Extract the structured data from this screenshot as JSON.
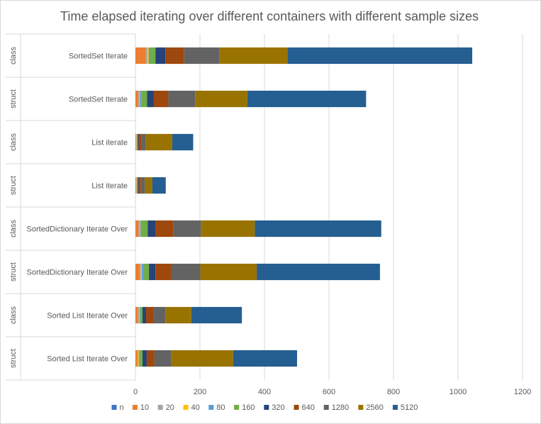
{
  "chart_data": {
    "type": "bar",
    "orientation": "horizontal",
    "stacked": true,
    "title": "Time elapsed iterating over different containers with different sample sizes",
    "xlabel": "",
    "ylabel": "",
    "xlim": [
      0,
      1200
    ],
    "xticks": [
      0,
      200,
      400,
      600,
      800,
      1000,
      1200
    ],
    "grid": true,
    "legend_position": "bottom",
    "categories": [
      {
        "group": "class",
        "label": "SortedSet Iterate"
      },
      {
        "group": "struct",
        "label": "SortedSet Iterate"
      },
      {
        "group": "class",
        "label": "List iterate"
      },
      {
        "group": "struct",
        "label": "List iterate"
      },
      {
        "group": "class",
        "label": "SortedDictionary Iterate Over"
      },
      {
        "group": "struct",
        "label": "SortedDictionary Iterate Over"
      },
      {
        "group": "class",
        "label": "Sorted List Iterate Over"
      },
      {
        "group": "struct",
        "label": "Sorted List Iterate Over"
      }
    ],
    "series": [
      {
        "name": "n",
        "color": "#4472c4",
        "values": [
          0,
          0,
          0,
          0,
          0,
          0,
          0,
          0
        ]
      },
      {
        "name": "10",
        "color": "#ed7d31",
        "values": [
          32,
          9,
          2,
          2,
          10,
          13,
          8,
          6
        ]
      },
      {
        "name": "20",
        "color": "#a5a5a5",
        "values": [
          4,
          3,
          1,
          1,
          3,
          4,
          3,
          3
        ]
      },
      {
        "name": "40",
        "color": "#ffc000",
        "values": [
          5,
          2,
          1,
          1,
          2,
          3,
          2,
          2
        ]
      },
      {
        "name": "80",
        "color": "#5b9bd5",
        "values": [
          4,
          4,
          1,
          1,
          4,
          5,
          2,
          3
        ]
      },
      {
        "name": "160",
        "color": "#70ad47",
        "values": [
          17,
          18,
          2,
          2,
          19,
          17,
          7,
          8
        ]
      },
      {
        "name": "320",
        "color": "#264478",
        "values": [
          31,
          21,
          3,
          3,
          25,
          20,
          11,
          13
        ]
      },
      {
        "name": "640",
        "color": "#9e480e",
        "values": [
          58,
          45,
          9,
          7,
          55,
          49,
          22,
          24
        ]
      },
      {
        "name": "1280",
        "color": "#636363",
        "values": [
          110,
          83,
          12,
          13,
          85,
          90,
          38,
          51
        ]
      },
      {
        "name": "2560",
        "color": "#997300",
        "values": [
          210,
          162,
          83,
          22,
          167,
          175,
          80,
          193
        ]
      },
      {
        "name": "5120",
        "color": "#255e91",
        "values": [
          573,
          368,
          65,
          42,
          392,
          382,
          157,
          198
        ]
      }
    ]
  }
}
